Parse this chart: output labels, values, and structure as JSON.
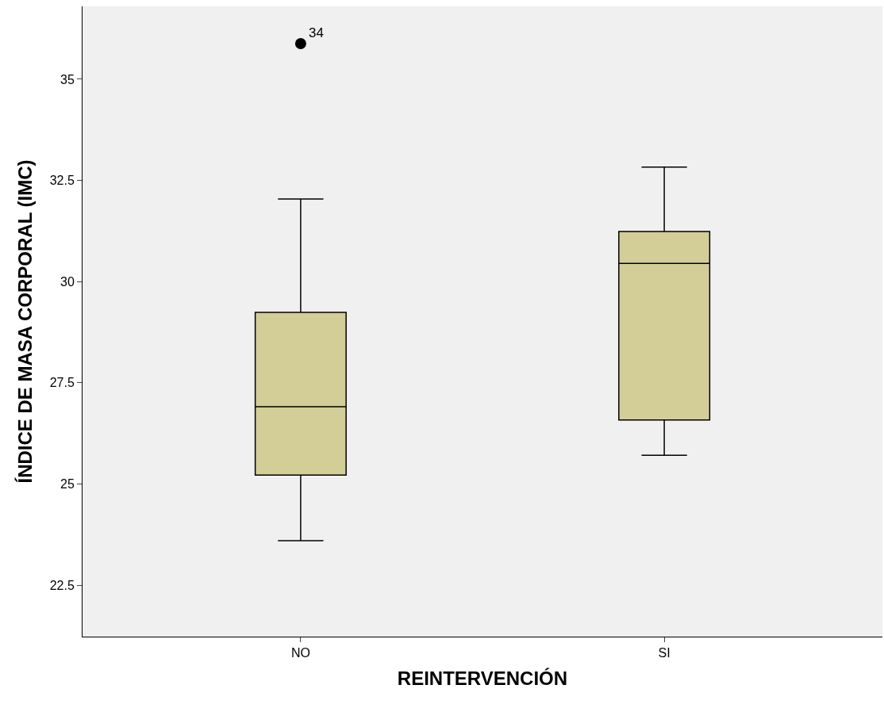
{
  "chart_data": {
    "type": "box",
    "xlabel": "REINTERVENCIÓN",
    "ylabel": "ÍNDICE DE MASA CORPORAL (IMC)",
    "categories": [
      "NO",
      "SI"
    ],
    "boxes": [
      {
        "low": 23.6,
        "q1": 25.22,
        "median": 26.91,
        "q3": 29.24,
        "high": 32.04,
        "outliers": [
          35.88
        ]
      },
      {
        "low": 25.71,
        "q1": 26.58,
        "median": 30.45,
        "q3": 31.24,
        "high": 32.83
      }
    ],
    "color": "#d3ce97",
    "ylim": [
      21.23,
      36.8
    ],
    "yticks": [
      22.5,
      25,
      27.5,
      30,
      32.5,
      35
    ],
    "annotations": [
      "34"
    ]
  }
}
